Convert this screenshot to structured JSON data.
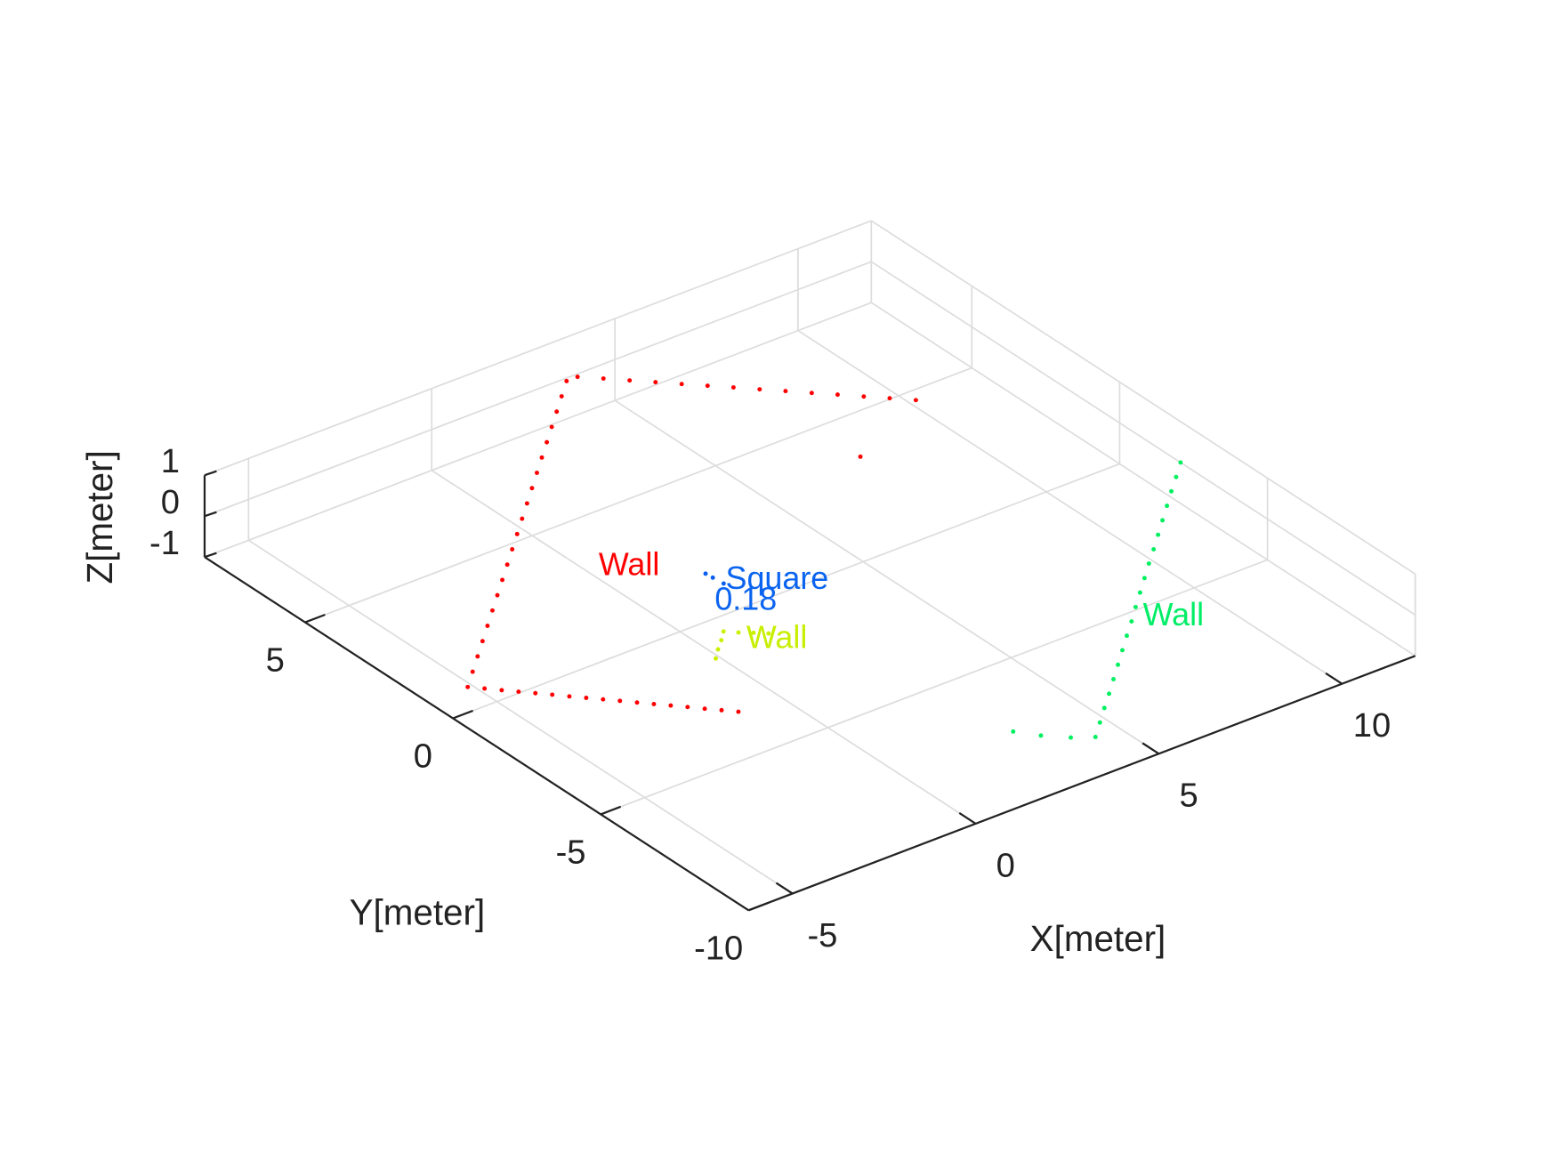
{
  "chart_data": {
    "type": "scatter3",
    "xlabel": "X[meter]",
    "ylabel": "Y[meter]",
    "zlabel": "Z[meter]",
    "xlim": [
      -6.2,
      12
    ],
    "ylim": [
      -10,
      8.4
    ],
    "zlim": [
      -1,
      1
    ],
    "xticks": [
      -5,
      0,
      5,
      10
    ],
    "yticks": [
      -10,
      -5,
      0,
      5
    ],
    "zticks": [
      -1,
      0,
      1
    ],
    "grid": true,
    "series": [
      {
        "color": "#ff0000",
        "x": [
          -6.2,
          -5.71,
          -5.22,
          -4.73,
          -4.24,
          -3.75,
          -3.26,
          -2.77,
          -2.28,
          -1.79,
          -1.3,
          -0.81,
          -0.32,
          0.17,
          0.66,
          1.15,
          1.64,
          2.13,
          2.62,
          3.11,
          3.6,
          3.9,
          4.3,
          4.7,
          5.1,
          5.5,
          5.9,
          6.3,
          6.7,
          7.1,
          7.5,
          7.9,
          8.3,
          8.7,
          9.1,
          -5.95,
          -5.7,
          -5.45,
          -5.2,
          -4.95,
          -4.7,
          -4.45,
          -4.2,
          -3.95,
          -3.7,
          -3.45,
          -3.2,
          -2.95,
          -2.7,
          -2.45,
          -2.2,
          6.65
        ],
        "y": [
          -0.5,
          -0.06,
          0.38,
          0.82,
          1.26,
          1.7,
          2.14,
          2.58,
          3.02,
          3.46,
          3.9,
          4.34,
          4.78,
          5.22,
          5.66,
          6.1,
          6.54,
          6.98,
          7.42,
          7.86,
          8.3,
          8.3,
          7.92,
          7.53,
          7.15,
          6.76,
          6.38,
          6.0,
          5.61,
          5.23,
          4.84,
          4.46,
          4.07,
          3.69,
          3.3,
          -0.76,
          -1.03,
          -1.29,
          -1.55,
          -1.81,
          -2.08,
          -2.34,
          -2.6,
          -2.86,
          -3.13,
          -3.39,
          -3.65,
          -3.91,
          -4.18,
          -4.44,
          -4.7,
          2.14
        ],
        "z": [
          0,
          0,
          0,
          0,
          0,
          0,
          0,
          0,
          0,
          0,
          0,
          0,
          0,
          0,
          0,
          0,
          0,
          0,
          0,
          0,
          0,
          0,
          0,
          0,
          0,
          0,
          0,
          0,
          0,
          0,
          0,
          0,
          0,
          0,
          0,
          0,
          0,
          0,
          0,
          0,
          0,
          0,
          0,
          0,
          0,
          0,
          0,
          0,
          0,
          0,
          0,
          0
        ]
      },
      {
        "color": "#00f060",
        "x": [
          3.27,
          3.73,
          4.19,
          4.65,
          5.11,
          5.57,
          6.03,
          6.49,
          6.95,
          7.4,
          7.86,
          8.32,
          8.78,
          9.24,
          9.7,
          10.16,
          10.62,
          11.08,
          11.54,
          12,
          2.0,
          2.37,
          2.83
        ],
        "y": [
          -10,
          -9.58,
          -9.16,
          -8.75,
          -8.33,
          -7.91,
          -7.49,
          -7.07,
          -6.66,
          -6.24,
          -5.82,
          -5.4,
          -4.98,
          -4.57,
          -4.15,
          -3.73,
          -3.31,
          -2.89,
          -2.48,
          -2.06,
          -8.79,
          -9.27,
          -9.71
        ],
        "z": [
          0,
          0,
          0,
          0,
          0,
          0,
          0,
          0,
          0,
          0,
          0,
          0,
          0,
          0,
          0,
          0,
          0,
          0,
          0,
          0,
          0,
          0,
          0
        ]
      },
      {
        "color": "#ccf000",
        "x": [
          -1.18,
          -0.9,
          -0.6,
          -0.33,
          -0.1,
          0.15,
          0.39
        ],
        "y": [
          -2.67,
          -2.4,
          -2.14,
          -1.88,
          -2.1,
          -2.3,
          -2.51
        ],
        "z": [
          0,
          0,
          0,
          0,
          0,
          0,
          0
        ]
      },
      {
        "color": "#0a5ff0",
        "x": [
          0.89,
          0.91,
          0.94
        ],
        "y": [
          0.24,
          0.02,
          -0.31
        ],
        "z": [
          0,
          0,
          0
        ]
      }
    ],
    "annotations": [
      {
        "text": "Wall",
        "x": -0.76,
        "y": 1.81,
        "z": 0,
        "color": "#ff0000"
      },
      {
        "text": "Square",
        "x": 1.05,
        "y": -0.24,
        "z": 0,
        "color": "#0a64f0"
      },
      {
        "text": "0.18",
        "x": 0.31,
        "y": -0.79,
        "z": 0,
        "color": "#0a64f0"
      },
      {
        "text": "Wall",
        "x": -0.15,
        "y": -2.43,
        "z": 0,
        "color": "#c8ee00"
      },
      {
        "text": "Wall",
        "x": 7.27,
        "y": -6.65,
        "z": 0,
        "color": "#00ee66"
      }
    ]
  }
}
